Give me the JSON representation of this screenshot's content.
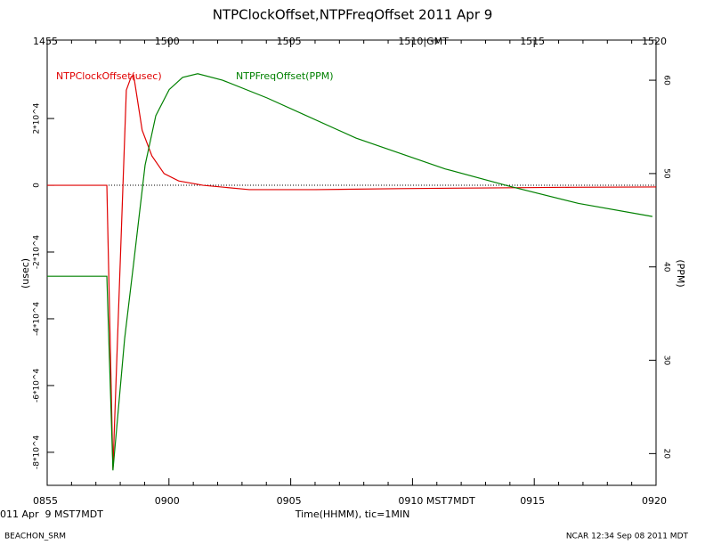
{
  "chart_data": {
    "type": "line",
    "title": "NTPClockOffset,NTPFreqOffset 2011 Apr 9",
    "x_label": "Time(HHMM), tic=1MIN",
    "date_label": "011 Apr  9 MST7MDT",
    "y_label": "(usec)",
    "y2_label": "(PPM)",
    "footer_left": "BEACHON_SRM",
    "footer_right": "NCAR 12:34 Sep 08 2011 MDT",
    "xlim": [
      0,
      25
    ],
    "xticks": [
      {
        "value": 0,
        "label": "0855"
      },
      {
        "value": 5,
        "label": "0900"
      },
      {
        "value": 10,
        "label": "0905"
      },
      {
        "value": 15,
        "label": "0910 MST7MDT"
      },
      {
        "value": 20,
        "label": "0915"
      },
      {
        "value": 25,
        "label": "0920"
      }
    ],
    "x2ticks": [
      {
        "value": 0,
        "label": "1455"
      },
      {
        "value": 5,
        "label": "1500"
      },
      {
        "value": 10,
        "label": "1505"
      },
      {
        "value": 15,
        "label": "1510|GMT"
      },
      {
        "value": 20,
        "label": "1515"
      },
      {
        "value": 25,
        "label": "1520"
      }
    ],
    "x_minor_ticks": [
      1,
      2,
      3,
      4,
      6,
      7,
      8,
      9,
      11,
      12,
      13,
      14,
      16,
      17,
      18,
      19,
      21,
      22,
      23,
      24
    ],
    "ylim": [
      -89900,
      43500
    ],
    "yticks": [
      {
        "value": -80000,
        "label": "-8*10^4"
      },
      {
        "value": -60000,
        "label": "-6*10^4"
      },
      {
        "value": -40000,
        "label": "-4*10^4"
      },
      {
        "value": -20000,
        "label": "-2*10^4"
      },
      0,
      {
        "value": 20000,
        "label": "2*10^4"
      }
    ],
    "y2lim": [
      16.6,
      64.3
    ],
    "y2ticks": [
      20,
      30,
      40,
      50,
      60
    ],
    "hline": 0,
    "series": [
      {
        "name": "NTPClockOffset(usec)",
        "color": "#e00000",
        "x": [
          0,
          2.45,
          2.7,
          3.25,
          3.45,
          3.55,
          3.9,
          4.3,
          4.8,
          5.4,
          6.4,
          8.3,
          11,
          14.5,
          18,
          21.5,
          25
        ],
        "values": [
          0,
          0,
          -85000,
          28500,
          32500,
          33000,
          16500,
          8800,
          3500,
          1300,
          0,
          -1300,
          -1300,
          -1000,
          -800,
          -600,
          -500
        ]
      },
      {
        "name": "NTPFreqOffset(PPM)",
        "color": "#008000",
        "axis": "y2",
        "x": [
          0,
          2.45,
          2.7,
          3.18,
          3.55,
          4.02,
          4.46,
          5.01,
          5.56,
          6.18,
          7.2,
          9.03,
          12.68,
          16.34,
          18.9,
          21.82,
          24.85
        ],
        "values": [
          39.0,
          39.0,
          18.2,
          32.3,
          40.4,
          50.9,
          56.2,
          59.0,
          60.3,
          60.7,
          60.0,
          58.1,
          53.8,
          50.5,
          48.7,
          46.8,
          45.4
        ]
      }
    ]
  }
}
